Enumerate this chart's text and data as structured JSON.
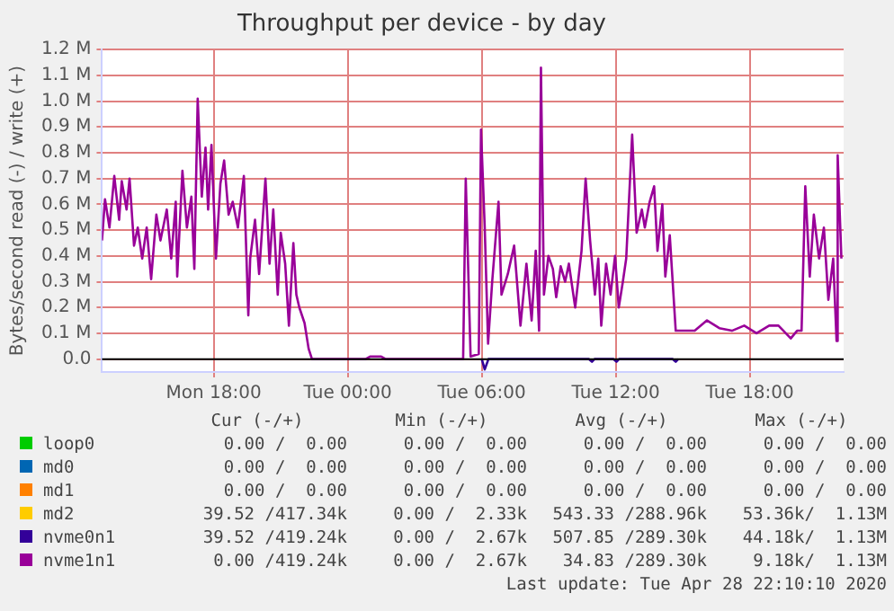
{
  "chart_data": {
    "type": "line",
    "title": "Throughput per device - by day",
    "ylabel": "Bytes/second read (-) / write (+)",
    "xlim": [
      "2020-04-27T13:00",
      "2020-04-28T22:12"
    ],
    "xticks": [
      {
        "value": "2020-04-27T18:00",
        "label": "Mon 18:00"
      },
      {
        "value": "2020-04-28T00:00",
        "label": "Tue 00:00"
      },
      {
        "value": "2020-04-28T06:00",
        "label": "Tue 06:00"
      },
      {
        "value": "2020-04-28T12:00",
        "label": "Tue 12:00"
      },
      {
        "value": "2020-04-28T18:00",
        "label": "Tue 18:00"
      }
    ],
    "ylim": [
      -0.05,
      1.2
    ],
    "yticks": [
      {
        "value": 0,
        "label": "0.0"
      },
      {
        "value": 0.1,
        "label": "0.1 M"
      },
      {
        "value": 0.2,
        "label": "0.2 M"
      },
      {
        "value": 0.3,
        "label": "0.3 M"
      },
      {
        "value": 0.4,
        "label": "0.4 M"
      },
      {
        "value": 0.5,
        "label": "0.5 M"
      },
      {
        "value": 0.6,
        "label": "0.6 M"
      },
      {
        "value": 0.7,
        "label": "0.7 M"
      },
      {
        "value": 0.8,
        "label": "0.8 M"
      },
      {
        "value": 0.9,
        "label": "0.9 M"
      },
      {
        "value": 1.0,
        "label": "1.0 M"
      },
      {
        "value": 1.1,
        "label": "1.1 M"
      },
      {
        "value": 1.2,
        "label": "1.2 M"
      }
    ],
    "grid": true,
    "legend": "bottom",
    "marker": "none",
    "line_style": "solid",
    "ref_lines": [
      {
        "axis": "y",
        "value": 0,
        "color": "#000000"
      }
    ],
    "series": [
      {
        "name": "loop0",
        "color": "#00cc00"
      },
      {
        "name": "md0",
        "color": "#0066b3"
      },
      {
        "name": "md1",
        "color": "#ff8000"
      },
      {
        "name": "md2",
        "color": "#ffcc00"
      },
      {
        "name": "nvme0n1",
        "color": "#330099",
        "x": [
          "2020-04-28T06:00",
          "2020-04-28T06:08",
          "2020-04-28T06:18",
          "2020-04-28T10:48",
          "2020-04-28T10:56",
          "2020-04-28T11:03",
          "2020-04-28T11:54",
          "2020-04-28T12:02",
          "2020-04-28T12:09",
          "2020-04-28T14:33",
          "2020-04-28T14:41",
          "2020-04-28T14:48"
        ],
        "values": [
          0,
          -0.04,
          0,
          0,
          -0.01,
          0,
          0,
          -0.01,
          0,
          0,
          -0.01,
          0
        ]
      },
      {
        "name": "nvme1n1",
        "color": "#990099",
        "x": [
          "2020-04-27T13:00",
          "2020-04-27T13:08",
          "2020-04-27T13:20",
          "2020-04-27T13:33",
          "2020-04-27T13:46",
          "2020-04-27T13:53",
          "2020-04-27T14:06",
          "2020-04-27T14:14",
          "2020-04-27T14:26",
          "2020-04-27T14:36",
          "2020-04-27T14:48",
          "2020-04-27T15:00",
          "2020-04-27T15:12",
          "2020-04-27T15:26",
          "2020-04-27T15:37",
          "2020-04-27T15:54",
          "2020-04-27T16:06",
          "2020-04-27T16:18",
          "2020-04-27T16:22",
          "2020-04-27T16:36",
          "2020-04-27T16:48",
          "2020-04-27T17:00",
          "2020-04-27T17:08",
          "2020-04-27T17:17",
          "2020-04-27T17:28",
          "2020-04-27T17:38",
          "2020-04-27T17:45",
          "2020-04-27T17:54",
          "2020-04-27T18:06",
          "2020-04-27T18:18",
          "2020-04-27T18:28",
          "2020-04-27T18:40",
          "2020-04-27T18:51",
          "2020-04-27T19:05",
          "2020-04-27T19:21",
          "2020-04-27T19:33",
          "2020-04-27T19:38",
          "2020-04-27T19:51",
          "2020-04-27T20:02",
          "2020-04-27T20:19",
          "2020-04-27T20:30",
          "2020-04-27T20:40",
          "2020-04-27T20:52",
          "2020-04-27T21:00",
          "2020-04-27T21:12",
          "2020-04-27T21:22",
          "2020-04-27T21:34",
          "2020-04-27T21:42",
          "2020-04-27T21:50",
          "2020-04-27T22:04",
          "2020-04-27T22:15",
          "2020-04-27T22:24",
          "2020-04-28T00:48",
          "2020-04-28T01:00",
          "2020-04-28T01:30",
          "2020-04-28T01:42",
          "2020-04-28T05:10",
          "2020-04-28T05:17",
          "2020-04-28T05:30",
          "2020-04-28T05:52",
          "2020-04-28T05:58",
          "2020-04-28T06:08",
          "2020-04-28T06:17",
          "2020-04-28T06:28",
          "2020-04-28T06:45",
          "2020-04-28T06:53",
          "2020-04-28T07:10",
          "2020-04-28T07:27",
          "2020-04-28T07:44",
          "2020-04-28T08:00",
          "2020-04-28T08:14",
          "2020-04-28T08:25",
          "2020-04-28T08:34",
          "2020-04-28T08:39",
          "2020-04-28T08:47",
          "2020-04-28T08:59",
          "2020-04-28T09:11",
          "2020-04-28T09:20",
          "2020-04-28T09:32",
          "2020-04-28T09:44",
          "2020-04-28T09:54",
          "2020-04-28T10:11",
          "2020-04-28T10:28",
          "2020-04-28T10:39",
          "2020-04-28T10:51",
          "2020-04-28T11:04",
          "2020-04-28T11:13",
          "2020-04-28T11:21",
          "2020-04-28T11:34",
          "2020-04-28T11:46",
          "2020-04-28T11:58",
          "2020-04-28T12:08",
          "2020-04-28T12:19",
          "2020-04-28T12:28",
          "2020-04-28T12:44",
          "2020-04-28T12:56",
          "2020-04-28T13:10",
          "2020-04-28T13:18",
          "2020-04-28T13:31",
          "2020-04-28T13:43",
          "2020-04-28T13:52",
          "2020-04-28T14:05",
          "2020-04-28T14:13",
          "2020-04-28T14:25",
          "2020-04-28T14:41",
          "2020-04-28T14:55",
          "2020-04-28T15:32",
          "2020-04-28T16:05",
          "2020-04-28T16:38",
          "2020-04-28T17:12",
          "2020-04-28T17:45",
          "2020-04-28T18:18",
          "2020-04-28T18:52",
          "2020-04-28T19:17",
          "2020-04-28T19:50",
          "2020-04-28T20:07",
          "2020-04-28T20:19",
          "2020-04-28T20:29",
          "2020-04-28T20:41",
          "2020-04-28T20:52",
          "2020-04-28T21:06",
          "2020-04-28T21:19",
          "2020-04-28T21:31",
          "2020-04-28T21:44",
          "2020-04-28T21:53",
          "2020-04-28T21:56",
          "2020-04-28T22:06"
        ],
        "values": [
          0.46,
          0.62,
          0.51,
          0.71,
          0.54,
          0.69,
          0.58,
          0.7,
          0.44,
          0.51,
          0.39,
          0.51,
          0.31,
          0.56,
          0.46,
          0.58,
          0.39,
          0.61,
          0.32,
          0.73,
          0.51,
          0.63,
          0.35,
          1.01,
          0.63,
          0.82,
          0.58,
          0.83,
          0.39,
          0.68,
          0.77,
          0.56,
          0.61,
          0.51,
          0.71,
          0.17,
          0.39,
          0.54,
          0.33,
          0.7,
          0.37,
          0.58,
          0.25,
          0.49,
          0.37,
          0.13,
          0.45,
          0.25,
          0.2,
          0.14,
          0.04,
          0,
          0,
          0.01,
          0.01,
          0,
          0,
          0.7,
          0.01,
          0.02,
          0.89,
          0.51,
          0.06,
          0.3,
          0.61,
          0.25,
          0.33,
          0.44,
          0.13,
          0.37,
          0.15,
          0.42,
          0.11,
          1.13,
          0.25,
          0.4,
          0.35,
          0.24,
          0.36,
          0.3,
          0.37,
          0.2,
          0.42,
          0.7,
          0.46,
          0.25,
          0.39,
          0.13,
          0.37,
          0.25,
          0.4,
          0.2,
          0.3,
          0.39,
          0.87,
          0.49,
          0.58,
          0.51,
          0.61,
          0.67,
          0.42,
          0.6,
          0.32,
          0.48,
          0.11,
          0.11,
          0.11,
          0.15,
          0.12,
          0.11,
          0.13,
          0.1,
          0.13,
          0.13,
          0.08,
          0.11,
          0.11,
          0.67,
          0.32,
          0.56,
          0.39,
          0.51,
          0.23,
          0.39,
          0.07,
          0.79,
          0.39
        ]
      }
    ],
    "annotations": [
      "Cur (-/+)",
      "Min (-/+)",
      "Avg (-/+)",
      "Max (-/+)",
      "0.00 /  0.00",
      "0.00 /  0.00",
      "0.00 /  0.00",
      "0.00 /  0.00",
      "0.00 /  0.00",
      "0.00 /  0.00",
      "0.00 /  0.00",
      "0.00 /  0.00",
      "0.00 /  0.00",
      "0.00 /  0.00",
      "0.00 /  0.00",
      "0.00 /  0.00",
      "39.52 /417.34k",
      "0.00 /  2.33k",
      "543.33 /288.96k",
      "53.36k/  1.13M",
      "39.52 /419.24k",
      "0.00 /  2.67k",
      "507.85 /289.30k",
      "44.18k/  1.13M",
      "0.00 /419.24k",
      "0.00 /  2.67k",
      "34.83 /289.30k",
      "9.18k/  1.13M",
      "Last update: Tue Apr 28 22:10:10 2020"
    ]
  }
}
